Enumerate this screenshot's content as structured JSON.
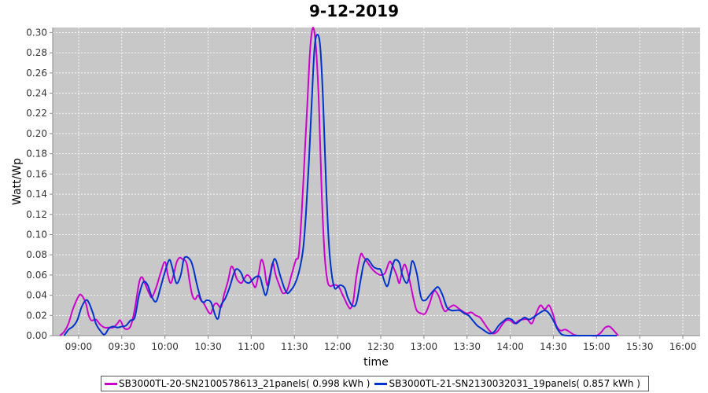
{
  "chart_data": {
    "type": "line",
    "title": "9-12-2019",
    "xlabel": "time",
    "ylabel": "Watt/Wp",
    "ylim": [
      0,
      0.305
    ],
    "xlim": [
      "08:42",
      "16:12"
    ],
    "grid": true,
    "legend_position": "bottom",
    "x_ticks": [
      "09:00",
      "09:30",
      "10:00",
      "10:30",
      "11:00",
      "11:30",
      "12:00",
      "12:30",
      "13:00",
      "13:30",
      "14:00",
      "14:30",
      "15:00",
      "15:30",
      "16:00"
    ],
    "y_ticks": [
      "0.00",
      "0.02",
      "0.04",
      "0.06",
      "0.08",
      "0.10",
      "0.12",
      "0.14",
      "0.16",
      "0.18",
      "0.20",
      "0.22",
      "0.24",
      "0.26",
      "0.28",
      "0.30"
    ],
    "series": [
      {
        "name": "SB3000TL-20-SN2100578613_21panels( 0.998 kWh )",
        "color": "#cc00cc",
        "points": [
          [
            "08:47",
            0.0
          ],
          [
            "08:50",
            0.004
          ],
          [
            "08:53",
            0.012
          ],
          [
            "08:56",
            0.026
          ],
          [
            "09:00",
            0.039
          ],
          [
            "09:02",
            0.04
          ],
          [
            "09:05",
            0.032
          ],
          [
            "09:07",
            0.02
          ],
          [
            "09:09",
            0.015
          ],
          [
            "09:12",
            0.016
          ],
          [
            "09:15",
            0.011
          ],
          [
            "09:18",
            0.008
          ],
          [
            "09:21",
            0.008
          ],
          [
            "09:24",
            0.008
          ],
          [
            "09:27",
            0.012
          ],
          [
            "09:29",
            0.015
          ],
          [
            "09:32",
            0.007
          ],
          [
            "09:36",
            0.009
          ],
          [
            "09:39",
            0.026
          ],
          [
            "09:42",
            0.052
          ],
          [
            "09:44",
            0.058
          ],
          [
            "09:46",
            0.052
          ],
          [
            "09:49",
            0.042
          ],
          [
            "09:51",
            0.038
          ],
          [
            "09:54",
            0.048
          ],
          [
            "09:57",
            0.062
          ],
          [
            "10:00",
            0.073
          ],
          [
            "10:02",
            0.06
          ],
          [
            "10:04",
            0.052
          ],
          [
            "10:06",
            0.06
          ],
          [
            "10:08",
            0.072
          ],
          [
            "10:10",
            0.077
          ],
          [
            "10:12",
            0.076
          ],
          [
            "10:15",
            0.072
          ],
          [
            "10:17",
            0.055
          ],
          [
            "10:19",
            0.04
          ],
          [
            "10:21",
            0.036
          ],
          [
            "10:23",
            0.04
          ],
          [
            "10:25",
            0.035
          ],
          [
            "10:27",
            0.032
          ],
          [
            "10:30",
            0.024
          ],
          [
            "10:32",
            0.022
          ],
          [
            "10:34",
            0.03
          ],
          [
            "10:36",
            0.032
          ],
          [
            "10:39",
            0.028
          ],
          [
            "10:41",
            0.04
          ],
          [
            "10:44",
            0.055
          ],
          [
            "10:46",
            0.068
          ],
          [
            "10:48",
            0.065
          ],
          [
            "10:50",
            0.056
          ],
          [
            "10:53",
            0.052
          ],
          [
            "10:55",
            0.056
          ],
          [
            "10:57",
            0.06
          ],
          [
            "10:59",
            0.058
          ],
          [
            "11:01",
            0.052
          ],
          [
            "11:03",
            0.048
          ],
          [
            "11:05",
            0.06
          ],
          [
            "11:07",
            0.075
          ],
          [
            "11:09",
            0.068
          ],
          [
            "11:11",
            0.05
          ],
          [
            "11:13",
            0.06
          ],
          [
            "11:15",
            0.072
          ],
          [
            "11:17",
            0.06
          ],
          [
            "11:20",
            0.048
          ],
          [
            "11:22",
            0.042
          ],
          [
            "11:25",
            0.045
          ],
          [
            "11:28",
            0.06
          ],
          [
            "11:31",
            0.075
          ],
          [
            "11:33",
            0.08
          ],
          [
            "11:35",
            0.12
          ],
          [
            "11:37",
            0.175
          ],
          [
            "11:39",
            0.23
          ],
          [
            "11:41",
            0.285
          ],
          [
            "11:43",
            0.305
          ],
          [
            "11:45",
            0.285
          ],
          [
            "11:47",
            0.23
          ],
          [
            "11:49",
            0.14
          ],
          [
            "11:51",
            0.08
          ],
          [
            "11:53",
            0.054
          ],
          [
            "11:55",
            0.049
          ],
          [
            "11:57",
            0.05
          ],
          [
            "11:59",
            0.05
          ],
          [
            "12:01",
            0.048
          ],
          [
            "12:03",
            0.042
          ],
          [
            "12:05",
            0.036
          ],
          [
            "12:07",
            0.03
          ],
          [
            "12:09",
            0.027
          ],
          [
            "12:11",
            0.035
          ],
          [
            "12:13",
            0.058
          ],
          [
            "12:16",
            0.08
          ],
          [
            "12:18",
            0.078
          ],
          [
            "12:21",
            0.072
          ],
          [
            "12:24",
            0.066
          ],
          [
            "12:27",
            0.062
          ],
          [
            "12:30",
            0.06
          ],
          [
            "12:33",
            0.062
          ],
          [
            "12:36",
            0.073
          ],
          [
            "12:38",
            0.07
          ],
          [
            "12:41",
            0.06
          ],
          [
            "12:43",
            0.052
          ],
          [
            "12:45",
            0.065
          ],
          [
            "12:47",
            0.07
          ],
          [
            "12:50",
            0.055
          ],
          [
            "12:53",
            0.035
          ],
          [
            "12:55",
            0.025
          ],
          [
            "12:58",
            0.022
          ],
          [
            "13:01",
            0.022
          ],
          [
            "13:04",
            0.032
          ],
          [
            "13:07",
            0.044
          ],
          [
            "13:10",
            0.04
          ],
          [
            "13:13",
            0.028
          ],
          [
            "13:15",
            0.024
          ],
          [
            "13:18",
            0.028
          ],
          [
            "13:21",
            0.03
          ],
          [
            "13:24",
            0.027
          ],
          [
            "13:27",
            0.024
          ],
          [
            "13:30",
            0.022
          ],
          [
            "13:33",
            0.023
          ],
          [
            "13:36",
            0.02
          ],
          [
            "13:39",
            0.018
          ],
          [
            "13:42",
            0.012
          ],
          [
            "13:45",
            0.006
          ],
          [
            "13:48",
            0.002
          ],
          [
            "13:51",
            0.004
          ],
          [
            "13:54",
            0.01
          ],
          [
            "13:57",
            0.015
          ],
          [
            "14:00",
            0.015
          ],
          [
            "14:03",
            0.012
          ],
          [
            "14:06",
            0.015
          ],
          [
            "14:09",
            0.016
          ],
          [
            "14:12",
            0.016
          ],
          [
            "14:15",
            0.012
          ],
          [
            "14:18",
            0.022
          ],
          [
            "14:21",
            0.03
          ],
          [
            "14:24",
            0.026
          ],
          [
            "14:27",
            0.03
          ],
          [
            "14:30",
            0.02
          ],
          [
            "14:32",
            0.01
          ],
          [
            "14:35",
            0.005
          ],
          [
            "14:38",
            0.006
          ],
          [
            "14:41",
            0.004
          ],
          [
            "14:44",
            0.001
          ],
          [
            "14:47",
            0.0
          ],
          [
            "14:50",
            0.0
          ],
          [
            "14:53",
            0.0
          ],
          [
            "14:56",
            0.0
          ],
          [
            "15:00",
            0.0
          ],
          [
            "15:03",
            0.003
          ],
          [
            "15:06",
            0.008
          ],
          [
            "15:09",
            0.009
          ],
          [
            "15:12",
            0.005
          ],
          [
            "15:15",
            0.0
          ]
        ]
      },
      {
        "name": "SB3000TL-21-SN2130032031_19panels( 0.857 kWh )",
        "color": "#0033cc",
        "points": [
          [
            "08:50",
            0.0
          ],
          [
            "08:53",
            0.006
          ],
          [
            "08:56",
            0.009
          ],
          [
            "08:59",
            0.015
          ],
          [
            "09:02",
            0.028
          ],
          [
            "09:05",
            0.035
          ],
          [
            "09:07",
            0.033
          ],
          [
            "09:10",
            0.022
          ],
          [
            "09:12",
            0.012
          ],
          [
            "09:15",
            0.005
          ],
          [
            "09:18",
            0.001
          ],
          [
            "09:21",
            0.007
          ],
          [
            "09:24",
            0.009
          ],
          [
            "09:27",
            0.008
          ],
          [
            "09:30",
            0.009
          ],
          [
            "09:33",
            0.01
          ],
          [
            "09:36",
            0.015
          ],
          [
            "09:39",
            0.018
          ],
          [
            "09:42",
            0.04
          ],
          [
            "09:45",
            0.053
          ],
          [
            "09:48",
            0.05
          ],
          [
            "09:51",
            0.038
          ],
          [
            "09:54",
            0.034
          ],
          [
            "09:57",
            0.048
          ],
          [
            "10:00",
            0.063
          ],
          [
            "10:03",
            0.075
          ],
          [
            "10:05",
            0.068
          ],
          [
            "10:08",
            0.052
          ],
          [
            "10:11",
            0.06
          ],
          [
            "10:13",
            0.075
          ],
          [
            "10:15",
            0.078
          ],
          [
            "10:18",
            0.074
          ],
          [
            "10:20",
            0.065
          ],
          [
            "10:22",
            0.052
          ],
          [
            "10:25",
            0.036
          ],
          [
            "10:27",
            0.033
          ],
          [
            "10:29",
            0.035
          ],
          [
            "10:32",
            0.033
          ],
          [
            "10:35",
            0.02
          ],
          [
            "10:37",
            0.017
          ],
          [
            "10:39",
            0.03
          ],
          [
            "10:42",
            0.037
          ],
          [
            "10:45",
            0.048
          ],
          [
            "10:48",
            0.062
          ],
          [
            "10:50",
            0.066
          ],
          [
            "10:53",
            0.062
          ],
          [
            "10:55",
            0.055
          ],
          [
            "10:58",
            0.052
          ],
          [
            "11:00",
            0.054
          ],
          [
            "11:03",
            0.058
          ],
          [
            "11:06",
            0.058
          ],
          [
            "11:08",
            0.048
          ],
          [
            "11:10",
            0.04
          ],
          [
            "11:12",
            0.05
          ],
          [
            "11:15",
            0.072
          ],
          [
            "11:17",
            0.075
          ],
          [
            "11:20",
            0.06
          ],
          [
            "11:23",
            0.047
          ],
          [
            "11:25",
            0.042
          ],
          [
            "11:27",
            0.044
          ],
          [
            "11:30",
            0.05
          ],
          [
            "11:33",
            0.062
          ],
          [
            "11:36",
            0.085
          ],
          [
            "11:38",
            0.12
          ],
          [
            "11:40",
            0.17
          ],
          [
            "11:42",
            0.23
          ],
          [
            "11:44",
            0.285
          ],
          [
            "11:46",
            0.298
          ],
          [
            "11:48",
            0.285
          ],
          [
            "11:50",
            0.23
          ],
          [
            "11:52",
            0.15
          ],
          [
            "11:54",
            0.09
          ],
          [
            "11:56",
            0.06
          ],
          [
            "11:58",
            0.047
          ],
          [
            "12:00",
            0.048
          ],
          [
            "12:02",
            0.05
          ],
          [
            "12:05",
            0.047
          ],
          [
            "12:07",
            0.038
          ],
          [
            "12:10",
            0.03
          ],
          [
            "12:13",
            0.032
          ],
          [
            "12:16",
            0.055
          ],
          [
            "12:18",
            0.07
          ],
          [
            "12:20",
            0.076
          ],
          [
            "12:22",
            0.074
          ],
          [
            "12:25",
            0.068
          ],
          [
            "12:28",
            0.066
          ],
          [
            "12:30",
            0.065
          ],
          [
            "12:33",
            0.052
          ],
          [
            "12:35",
            0.05
          ],
          [
            "12:38",
            0.068
          ],
          [
            "12:40",
            0.075
          ],
          [
            "12:43",
            0.072
          ],
          [
            "12:45",
            0.06
          ],
          [
            "12:48",
            0.052
          ],
          [
            "12:50",
            0.06
          ],
          [
            "12:52",
            0.074
          ],
          [
            "12:55",
            0.062
          ],
          [
            "12:58",
            0.038
          ],
          [
            "13:01",
            0.035
          ],
          [
            "13:04",
            0.04
          ],
          [
            "13:07",
            0.045
          ],
          [
            "13:10",
            0.048
          ],
          [
            "13:13",
            0.04
          ],
          [
            "13:16",
            0.028
          ],
          [
            "13:19",
            0.025
          ],
          [
            "13:22",
            0.025
          ],
          [
            "13:25",
            0.025
          ],
          [
            "13:28",
            0.022
          ],
          [
            "13:31",
            0.02
          ],
          [
            "13:34",
            0.015
          ],
          [
            "13:37",
            0.01
          ],
          [
            "13:40",
            0.007
          ],
          [
            "13:43",
            0.004
          ],
          [
            "13:46",
            0.002
          ],
          [
            "13:49",
            0.004
          ],
          [
            "13:52",
            0.01
          ],
          [
            "13:55",
            0.014
          ],
          [
            "13:58",
            0.017
          ],
          [
            "14:01",
            0.016
          ],
          [
            "14:04",
            0.012
          ],
          [
            "14:07",
            0.015
          ],
          [
            "14:10",
            0.018
          ],
          [
            "14:13",
            0.016
          ],
          [
            "14:16",
            0.018
          ],
          [
            "14:20",
            0.022
          ],
          [
            "14:24",
            0.025
          ],
          [
            "14:27",
            0.022
          ],
          [
            "14:30",
            0.015
          ],
          [
            "14:33",
            0.006
          ],
          [
            "14:36",
            0.001
          ],
          [
            "14:40",
            0.0
          ],
          [
            "14:44",
            0.0
          ],
          [
            "14:48",
            0.0
          ],
          [
            "14:52",
            0.0
          ],
          [
            "14:56",
            0.0
          ],
          [
            "15:00",
            0.0
          ],
          [
            "15:05",
            0.0
          ],
          [
            "15:10",
            0.0
          ],
          [
            "15:14",
            0.0
          ]
        ]
      }
    ]
  }
}
